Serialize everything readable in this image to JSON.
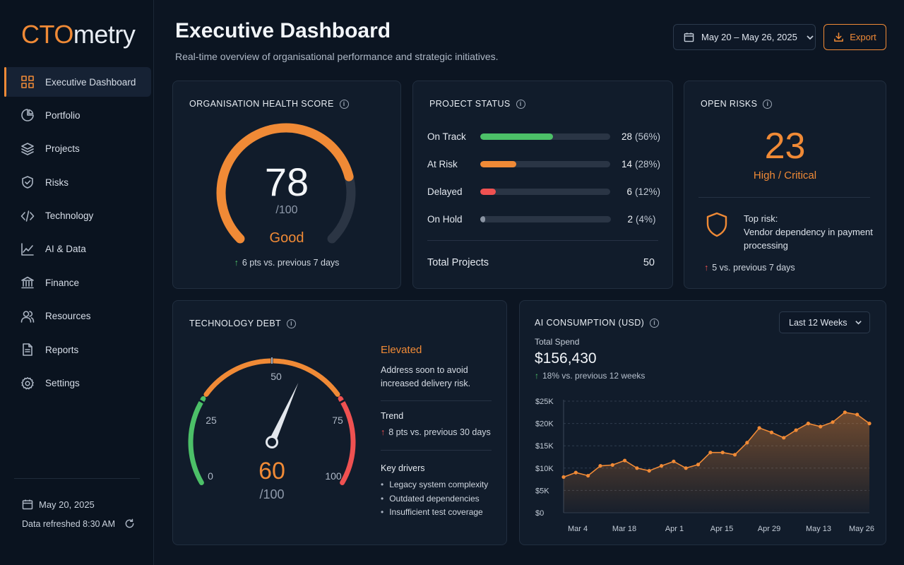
{
  "logo": {
    "part1": "CTO",
    "part2": "metry"
  },
  "sidebar": {
    "items": [
      {
        "label": "Executive Dashboard",
        "icon": "grid-icon",
        "active": true
      },
      {
        "label": "Portfolio",
        "icon": "pie-chart-icon"
      },
      {
        "label": "Projects",
        "icon": "layers-icon"
      },
      {
        "label": "Risks",
        "icon": "shield-check-icon"
      },
      {
        "label": "Technology",
        "icon": "code-icon"
      },
      {
        "label": "AI & Data",
        "icon": "line-chart-icon"
      },
      {
        "label": "Finance",
        "icon": "bank-icon"
      },
      {
        "label": "Resources",
        "icon": "users-icon"
      },
      {
        "label": "Reports",
        "icon": "document-icon"
      },
      {
        "label": "Settings",
        "icon": "gear-icon"
      }
    ],
    "date": "May 20, 2025",
    "refreshed": "Data refreshed 8:30 AM"
  },
  "header": {
    "title": "Executive Dashboard",
    "subtitle": "Real-time overview of organisational performance and strategic initiatives.",
    "date_range": "May 20 – May 26, 2025",
    "export_label": "Export"
  },
  "health": {
    "title": "ORGANISATION HEALTH SCORE",
    "score": 78,
    "score_text": "78",
    "outof": "/100",
    "rating": "Good",
    "delta": "6 pts vs. previous 7 days",
    "accent": "#f08a36"
  },
  "project_status": {
    "title": "PROJECT STATUS",
    "rows": [
      {
        "label": "On Track",
        "count": "28",
        "pct": "(56%)",
        "fraction": 0.56,
        "color": "#4cc068"
      },
      {
        "label": "At Risk",
        "count": "14",
        "pct": "(28%)",
        "fraction": 0.28,
        "color": "#f08a36"
      },
      {
        "label": "Delayed",
        "count": "6",
        "pct": "(12%)",
        "fraction": 0.12,
        "color": "#ef5151"
      },
      {
        "label": "On Hold",
        "count": "2",
        "pct": "(4%)",
        "fraction": 0.04,
        "color": "#8a94a3"
      }
    ],
    "total_label": "Total Projects",
    "total_value": "50"
  },
  "open_risks": {
    "title": "OPEN RISKS",
    "count": "23",
    "severity": "High / Critical",
    "top_risk_label": "Top risk:",
    "top_risk_text": "Vendor dependency in payment processing",
    "delta": "5 vs. previous 7 days"
  },
  "tech_debt": {
    "title": "TECHNOLOGY DEBT",
    "score": 60,
    "score_text": "60",
    "outof": "/100",
    "scale_labels": [
      "0",
      "25",
      "50",
      "75",
      "100"
    ],
    "level": "Elevated",
    "description": "Address soon to avoid increased delivery risk.",
    "trend_heading": "Trend",
    "trend": "8 pts vs. previous 30 days",
    "drivers_heading": "Key drivers",
    "drivers": [
      "Legacy system complexity",
      "Outdated dependencies",
      "Insufficient test coverage"
    ]
  },
  "ai_consumption": {
    "title": "AI CONSUMPTION (USD)",
    "range": "Last 12 Weeks",
    "total_label": "Total Spend",
    "total_value": "$156,430",
    "delta": "18% vs. previous 12 weeks"
  },
  "chart_data": {
    "type": "area",
    "ylim": [
      0,
      25000
    ],
    "yticks": [
      {
        "value": 0,
        "label": "$0"
      },
      {
        "value": 5000,
        "label": "$5K"
      },
      {
        "value": 10000,
        "label": "$10K"
      },
      {
        "value": 15000,
        "label": "$15K"
      },
      {
        "value": 20000,
        "label": "$20K"
      },
      {
        "value": 25000,
        "label": "$25K"
      }
    ],
    "xtick_labels": [
      "Mar 4",
      "Mar 18",
      "Apr 1",
      "Apr 15",
      "Apr 29",
      "May 13",
      "May 26"
    ],
    "values": [
      8000,
      9000,
      8300,
      10500,
      10700,
      11700,
      10000,
      9400,
      10500,
      11500,
      10000,
      10800,
      13500,
      13500,
      13000,
      15700,
      19000,
      18000,
      16800,
      18500,
      20000,
      19300,
      20300,
      22500,
      22000,
      20000
    ],
    "color": "#f08a36"
  }
}
